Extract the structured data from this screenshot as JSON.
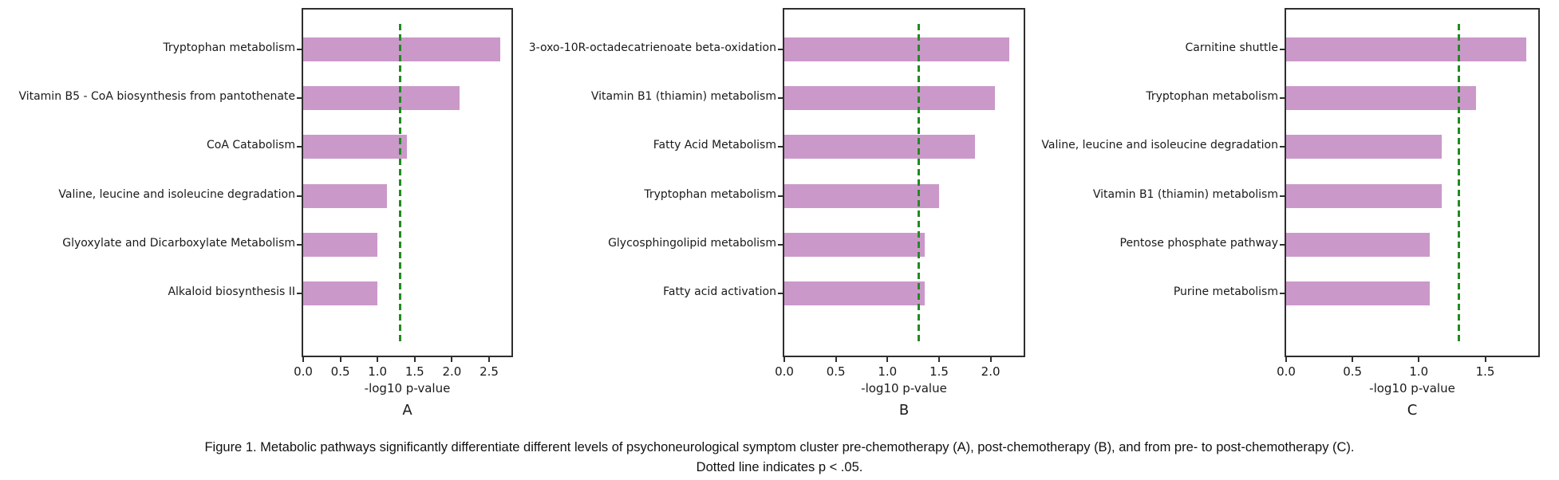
{
  "figure": {
    "caption_line1": "Figure 1. Metabolic pathways significantly differentiate different levels of psychoneurological symptom cluster pre-chemotherapy (A), post-chemotherapy (B), and from pre- to post-chemotherapy (C).",
    "caption_line2": "Dotted line indicates p < .05."
  },
  "colors": {
    "bar_fill": "#ca99c9",
    "threshold_line": "#228B22",
    "axis": "#2e2e2e",
    "text": "#1a1a1a"
  },
  "threshold": {
    "value": 1.301,
    "meaning": "p < .05"
  },
  "chart_data": [
    {
      "type": "bar",
      "orientation": "horizontal",
      "panel_label": "A",
      "xlabel": "-log10 p-value",
      "categories": [
        "Tryptophan metabolism",
        "Vitamin B5 - CoA biosynthesis from pantothenate",
        "CoA Catabolism",
        "Valine, leucine and isoleucine degradation",
        "Glyoxylate and Dicarboxylate Metabolism",
        "Alkaloid biosynthesis II"
      ],
      "values": [
        2.65,
        2.1,
        1.39,
        1.13,
        1.0,
        1.0
      ],
      "xticks": [
        0.0,
        0.5,
        1.0,
        1.5,
        2.0,
        2.5
      ],
      "xlim": [
        0,
        2.8
      ],
      "threshold": 1.301,
      "grid": false,
      "legend": "none"
    },
    {
      "type": "bar",
      "orientation": "horizontal",
      "panel_label": "B",
      "xlabel": "-log10 p-value",
      "categories": [
        "3-oxo-10R-octadecatrienoate beta-oxidation",
        "Vitamin B1 (thiamin) metabolism",
        "Fatty Acid Metabolism",
        "Tryptophan metabolism",
        "Glycosphingolipid metabolism",
        "Fatty acid activation"
      ],
      "values": [
        2.18,
        2.04,
        1.85,
        1.5,
        1.36,
        1.36
      ],
      "xticks": [
        0.0,
        0.5,
        1.0,
        1.5,
        2.0
      ],
      "xlim": [
        0,
        2.32
      ],
      "threshold": 1.301,
      "grid": false,
      "legend": "none"
    },
    {
      "type": "bar",
      "orientation": "horizontal",
      "panel_label": "C",
      "xlabel": "-log10 p-value",
      "categories": [
        "Carnitine shuttle",
        "Tryptophan metabolism",
        "Valine, leucine and isoleucine degradation",
        "Vitamin B1 (thiamin) metabolism",
        "Pentose phosphate pathway",
        "Purine metabolism"
      ],
      "values": [
        1.81,
        1.43,
        1.17,
        1.17,
        1.08,
        1.08
      ],
      "xticks": [
        0.0,
        0.5,
        1.0,
        1.5
      ],
      "xlim": [
        0,
        1.9
      ],
      "threshold": 1.301,
      "grid": false,
      "legend": "none"
    }
  ]
}
